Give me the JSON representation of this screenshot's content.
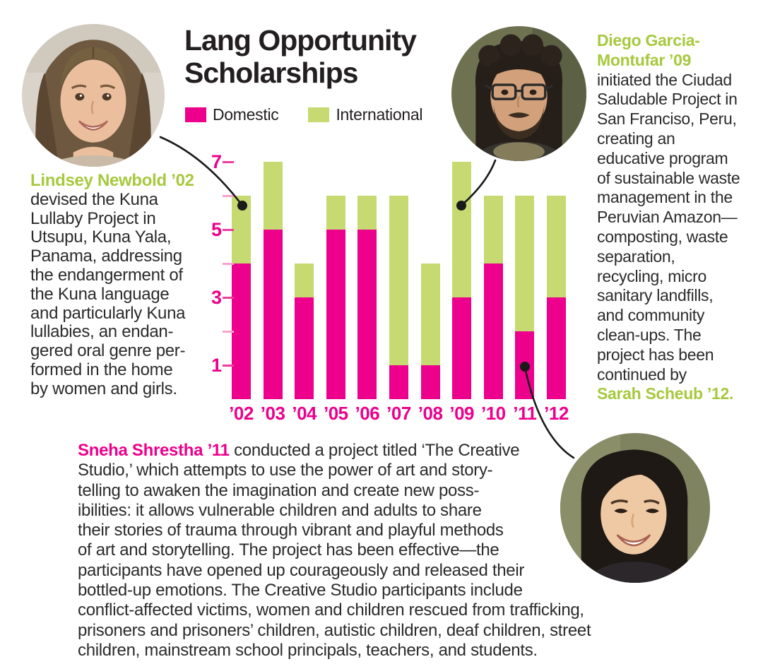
{
  "header": {
    "title_line1": "Lang Opportunity",
    "title_line2": "Scholarships"
  },
  "legend": [
    {
      "label": "Domestic",
      "color": "#EC008C"
    },
    {
      "label": "International",
      "color": "#C6DA71"
    }
  ],
  "chart_data": {
    "type": "bar",
    "stacked": true,
    "title": "Lang Opportunity Scholarships",
    "categories": [
      "’02",
      "’03",
      "’04",
      "’05",
      "’06",
      "’07",
      "’08",
      "’09",
      "’10",
      "’11",
      "’12"
    ],
    "series": [
      {
        "name": "Domestic",
        "color": "#EC008C",
        "values": [
          4,
          5,
          3,
          5,
          5,
          1,
          1,
          3,
          4,
          2,
          3
        ]
      },
      {
        "name": "International",
        "color": "#C6DA71",
        "values": [
          2,
          2,
          1,
          1,
          1,
          5,
          3,
          4,
          2,
          4,
          3
        ]
      }
    ],
    "totals": [
      6,
      7,
      4,
      6,
      6,
      6,
      4,
      7,
      6,
      6,
      6
    ],
    "ylim": [
      0,
      7
    ],
    "y_ticks_labeled": [
      1,
      3,
      5,
      7
    ],
    "y_ticks_unlabeled": [
      2,
      4,
      6
    ],
    "grid": false,
    "legend_position": "top"
  },
  "profiles": {
    "lindsey": {
      "name": "Lindsey Newbold ’02",
      "body": "\ndevised the Kuna\nLullaby Project in\nUtsupu, Kuna Yala,\nPanama, addressing\nthe endangerment of\nthe Kuna language\nand particularly Kuna\nlullabies, an endan-\ngered oral genre per-\nformed in the home\nby women and girls."
    },
    "diego": {
      "name": "Diego Garcia-\nMontufar ’09",
      "body": "\ninitiated the Ciudad\nSaludable Project in\nSan Franciso, Peru,\ncreating an\neducative program\nof sustainable waste\nmanagement in the\nPeruvian Amazon—\ncomposting, waste\nseparation,\nrecycling, micro\nsanitary landfills,\nand community\nclean-ups. The\nproject has been\ncontinued by\n",
      "tail_name": "Sarah Scheub ’12."
    },
    "sneha": {
      "name": "Sneha Shrestha ’11",
      "body": "conducted a project titled ‘The Creative\nStudio,’ which attempts to use the power of art and story-\ntelling to awaken the imagination and create new poss-\nibilities: it allows vulnerable children and adults to share\ntheir stories of trauma through vibrant and playful methods\nof art and storytelling. The project has been effective—the\nparticipants have opened up courageously and released their\nbottled-up emotions. The Creative Studio participants include\nconflict-affected victims, women and children rescued from trafficking,\nprisoners and prisoners’ children, autistic children, deaf children, street\nchildren, mainstream school principals, teachers, and students."
    }
  },
  "colors": {
    "magenta": "#EC008C",
    "lime_bar": "#C6DA71",
    "green_name": "#A6C93D",
    "body_text": "#2B2B2B",
    "tick_dash_labeled": "#EE3D9E",
    "tick_dash_unlabeled": "#F6A3CE",
    "connector": "#1A1A1A"
  }
}
